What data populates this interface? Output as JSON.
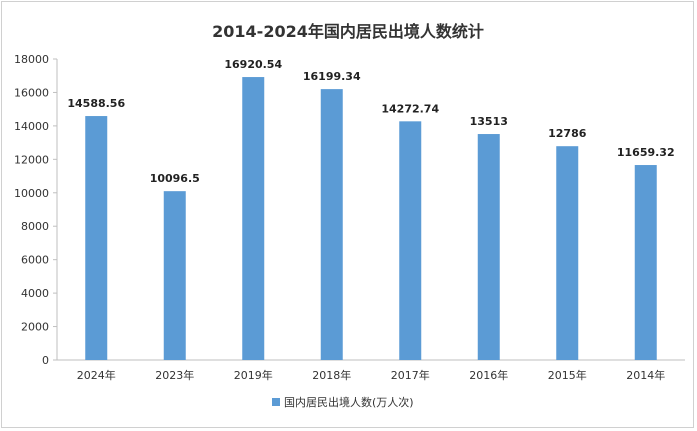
{
  "chart_data": {
    "type": "bar",
    "title": "2014-2024年国内居民出境人数统计",
    "categories": [
      "2024年",
      "2023年",
      "2019年",
      "2018年",
      "2017年",
      "2016年",
      "2015年",
      "2014年"
    ],
    "series": [
      {
        "name": "国内居民出境人数(万人次)",
        "values": [
          14588.56,
          10096.5,
          16920.54,
          16199.34,
          14272.74,
          13513,
          12786,
          11659.32
        ],
        "labels": [
          "14588.56",
          "10096.5",
          "16920.54",
          "16199.34",
          "14272.74",
          "13513",
          "12786",
          "11659.32"
        ],
        "color": "#5b9bd5"
      }
    ],
    "xlabel": "",
    "ylabel": "",
    "ylim": [
      0,
      18000
    ],
    "yticks": [
      0,
      2000,
      4000,
      6000,
      8000,
      10000,
      12000,
      14000,
      16000,
      18000
    ],
    "grid": false,
    "legend_position": "bottom"
  }
}
